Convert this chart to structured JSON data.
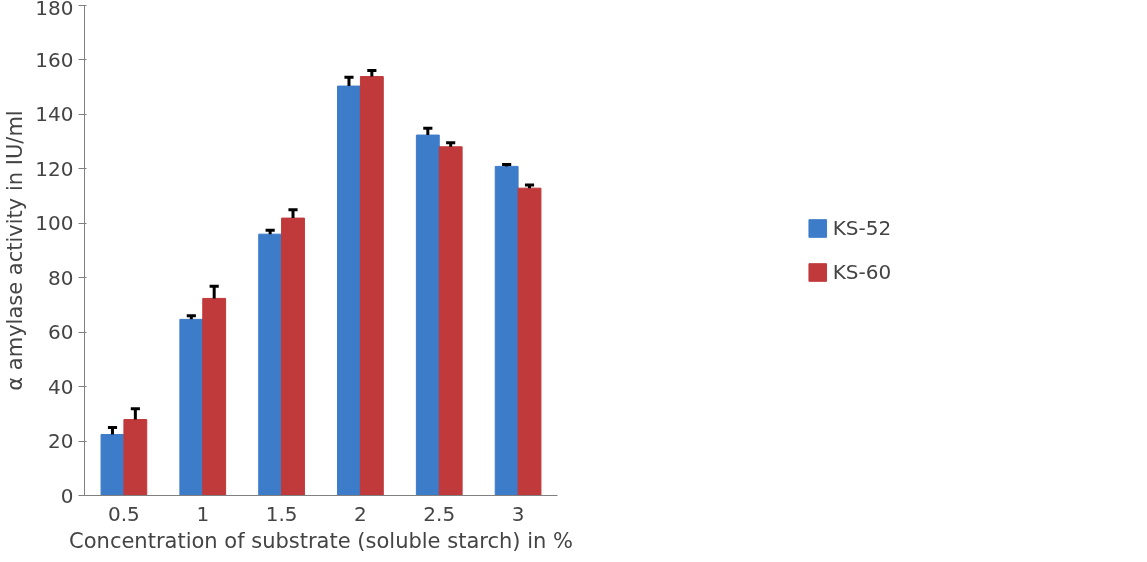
{
  "chart_data": {
    "type": "bar",
    "xlabel": "Concentration of substrate (soluble starch) in %",
    "ylabel": "α amylase activity in IU/ml",
    "categories": [
      "0.5",
      "1",
      "1.5",
      "2",
      "2.5",
      "3"
    ],
    "series": [
      {
        "name": "KS-52",
        "color": "#3d7cc9",
        "values": [
          22.4,
          64.7,
          96,
          150.4,
          132.4,
          120.9
        ],
        "errors": [
          [
            22.4,
            25
          ],
          [
            64.7,
            66
          ],
          [
            96,
            97.4
          ],
          [
            150.4,
            153.6
          ],
          [
            132.4,
            134.9
          ],
          [
            120.9,
            121.6
          ]
        ]
      },
      {
        "name": "KS-60",
        "color": "#c0393b",
        "values": [
          27.9,
          72.4,
          101.9,
          153.9,
          128.1,
          112.9
        ],
        "errors": [
          [
            27.9,
            31.9
          ],
          [
            72.4,
            76.9
          ],
          [
            101.9,
            105
          ],
          [
            153.9,
            156.1
          ],
          [
            128.1,
            129.6
          ],
          [
            112.9,
            114.1
          ]
        ]
      }
    ],
    "ylim": [
      0,
      180
    ],
    "yticks": [
      0,
      20,
      40,
      60,
      80,
      100,
      120,
      140,
      160,
      180
    ],
    "grid": false,
    "legend": "right"
  }
}
